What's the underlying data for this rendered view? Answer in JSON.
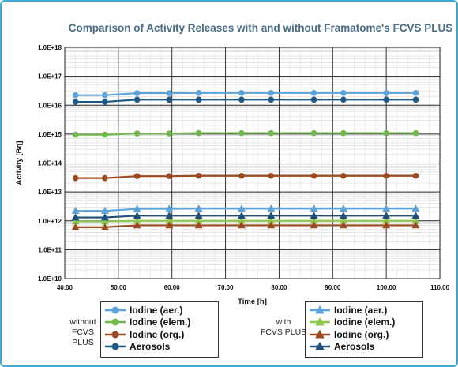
{
  "chart_data": {
    "type": "line",
    "title": "Comparison of Activity Releases with and without Framatome's FCVS PLUS",
    "xlabel": "Time [h]",
    "ylabel": "Activity [Bq]",
    "xlim": [
      40,
      110
    ],
    "x_ticks": [
      "40.00",
      "50.00",
      "60.00",
      "70.00",
      "80.00",
      "90.00",
      "100.00",
      "110.00"
    ],
    "ylim": [
      10000000000.0,
      1e+18
    ],
    "y_scale": "log",
    "y_ticks": [
      "1.0E+10",
      "1.0E+11",
      "1.0E+12",
      "1.0E+13",
      "1.0E+14",
      "1.0E+15",
      "1.0E+16",
      "1.0E+17",
      "1.0E+18"
    ],
    "grid": true,
    "x": [
      42,
      47.5,
      53.5,
      59.5,
      65,
      73,
      78.5,
      86.5,
      92,
      100,
      105.5
    ],
    "groups": [
      {
        "caption_line1": "without",
        "caption_line2": "FCVS PLUS",
        "placement": "bottom-left"
      },
      {
        "caption_line1": "with",
        "caption_line2": "FCVS PLUS",
        "placement": "bottom-right"
      }
    ],
    "series": [
      {
        "name": "Iodine (aer.)",
        "group": 0,
        "marker": "circle",
        "color": "#5ba3d9",
        "values": [
          2.2e+16,
          2.2e+16,
          2.6e+16,
          2.6e+16,
          2.65e+16,
          2.65e+16,
          2.65e+16,
          2.65e+16,
          2.65e+16,
          2.65e+16,
          2.65e+16
        ]
      },
      {
        "name": "Iodine (elem.)",
        "group": 0,
        "marker": "circle",
        "color": "#70b84a",
        "values": [
          950000000000000.0,
          950000000000000.0,
          1050000000000000.0,
          1050000000000000.0,
          1080000000000000.0,
          1080000000000000.0,
          1080000000000000.0,
          1080000000000000.0,
          1080000000000000.0,
          1080000000000000.0,
          1080000000000000.0
        ]
      },
      {
        "name": "Iodine (org.)",
        "group": 0,
        "marker": "circle",
        "color": "#9a4a1e",
        "values": [
          30000000000000.0,
          30000000000000.0,
          35000000000000.0,
          35000000000000.0,
          36000000000000.0,
          36000000000000.0,
          36000000000000.0,
          36000000000000.0,
          36000000000000.0,
          36000000000000.0,
          36000000000000.0
        ]
      },
      {
        "name": "Aerosols",
        "group": 0,
        "marker": "circle",
        "color": "#1f5a85",
        "values": [
          1.3e+16,
          1.3e+16,
          1.55e+16,
          1.55e+16,
          1.55e+16,
          1.55e+16,
          1.55e+16,
          1.55e+16,
          1.55e+16,
          1.55e+16,
          1.55e+16
        ]
      },
      {
        "name": "Iodine (aer.)",
        "group": 1,
        "marker": "triangle",
        "color": "#5ba3d9",
        "values": [
          2200000000000.0,
          2200000000000.0,
          2600000000000.0,
          2600000000000.0,
          2650000000000.0,
          2650000000000.0,
          2650000000000.0,
          2650000000000.0,
          2650000000000.0,
          2650000000000.0,
          2650000000000.0
        ]
      },
      {
        "name": "Iodine (elem.)",
        "group": 1,
        "marker": "triangle",
        "color": "#8cc850",
        "values": [
          950000000000.0,
          950000000000.0,
          1000000000000.0,
          1000000000000.0,
          1000000000000.0,
          1000000000000.0,
          1000000000000.0,
          1000000000000.0,
          1000000000000.0,
          1000000000000.0,
          1000000000000.0
        ]
      },
      {
        "name": "Iodine (org.)",
        "group": 1,
        "marker": "triangle",
        "color": "#9a4a1e",
        "values": [
          600000000000.0,
          600000000000.0,
          700000000000.0,
          700000000000.0,
          700000000000.0,
          700000000000.0,
          700000000000.0,
          700000000000.0,
          700000000000.0,
          700000000000.0,
          700000000000.0
        ]
      },
      {
        "name": "Aerosols",
        "group": 1,
        "marker": "triangle",
        "color": "#1f4f7a",
        "values": [
          1300000000000.0,
          1300000000000.0,
          1500000000000.0,
          1500000000000.0,
          1500000000000.0,
          1500000000000.0,
          1500000000000.0,
          1500000000000.0,
          1500000000000.0,
          1500000000000.0,
          1500000000000.0
        ]
      }
    ]
  }
}
